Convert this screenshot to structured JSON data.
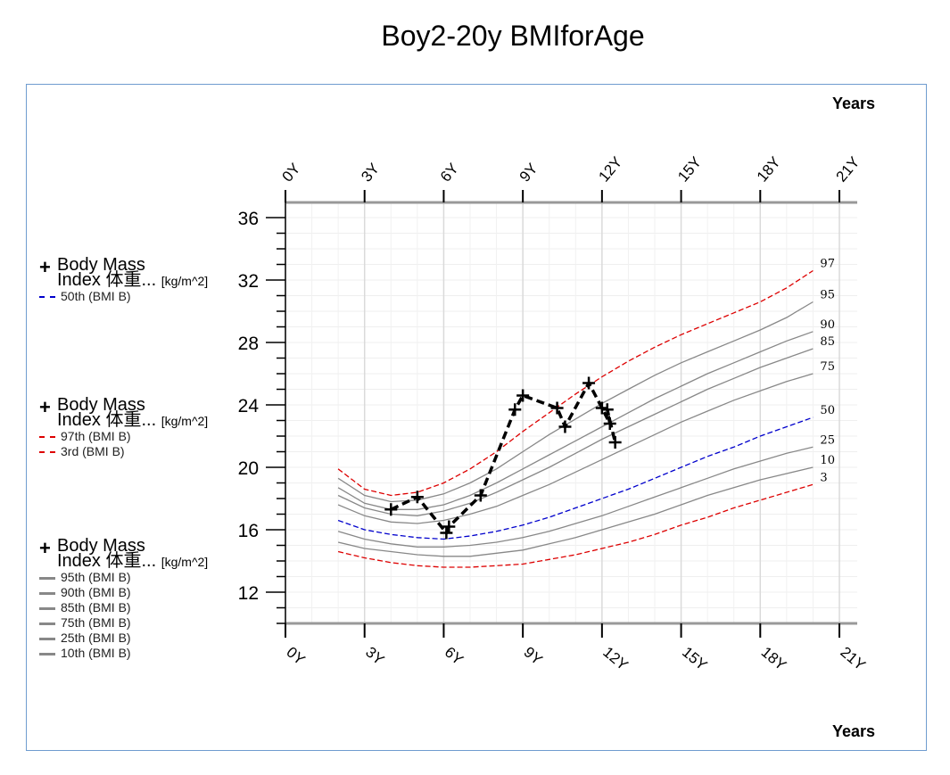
{
  "title": "Boy2-20y BMIforAge",
  "chart_data": {
    "type": "line",
    "title": "Boy2-20y BMIforAge",
    "xlabel": "Years",
    "ylabel": "",
    "xlim": [
      0,
      21
    ],
    "ylim": [
      10,
      37
    ],
    "x_ticks": [
      "0Y",
      "3Y",
      "6Y",
      "9Y",
      "12Y",
      "15Y",
      "18Y",
      "21Y"
    ],
    "y_ticks": [
      "12",
      "16",
      "20",
      "24",
      "28",
      "32",
      "36"
    ],
    "grid": true,
    "x_axis_label_top": "Years",
    "x_axis_label_bottom": "Years",
    "curve_x": [
      2,
      3,
      4,
      5,
      6,
      7,
      8,
      9,
      10,
      11,
      12,
      13,
      14,
      15,
      16,
      17,
      18,
      19,
      20
    ],
    "percentile_curves": [
      {
        "label": "97",
        "color": "#dd0000",
        "style": "dashed",
        "values": [
          19.9,
          18.6,
          18.2,
          18.4,
          19.0,
          19.9,
          21.0,
          22.3,
          23.5,
          24.7,
          25.8,
          26.8,
          27.7,
          28.5,
          29.2,
          29.9,
          30.6,
          31.5,
          32.6
        ]
      },
      {
        "label": "95",
        "color": "#888888",
        "style": "solid",
        "values": [
          19.3,
          18.2,
          17.8,
          17.9,
          18.3,
          19.0,
          19.9,
          21.0,
          22.1,
          23.1,
          24.1,
          25.0,
          25.9,
          26.7,
          27.4,
          28.1,
          28.8,
          29.6,
          30.6
        ]
      },
      {
        "label": "90",
        "color": "#888888",
        "style": "solid",
        "values": [
          18.7,
          17.7,
          17.3,
          17.3,
          17.6,
          18.2,
          19.0,
          19.9,
          20.8,
          21.7,
          22.6,
          23.5,
          24.4,
          25.2,
          26.0,
          26.7,
          27.4,
          28.1,
          28.7
        ]
      },
      {
        "label": "85",
        "color": "#888888",
        "style": "solid",
        "values": [
          18.2,
          17.4,
          17.0,
          16.9,
          17.2,
          17.7,
          18.4,
          19.2,
          20.0,
          20.9,
          21.8,
          22.6,
          23.4,
          24.2,
          25.0,
          25.7,
          26.4,
          27.0,
          27.6
        ]
      },
      {
        "label": "75",
        "color": "#888888",
        "style": "solid",
        "values": [
          17.6,
          16.9,
          16.5,
          16.4,
          16.6,
          17.0,
          17.5,
          18.2,
          18.9,
          19.7,
          20.5,
          21.3,
          22.1,
          22.9,
          23.6,
          24.3,
          24.9,
          25.5,
          26.0
        ]
      },
      {
        "label": "50",
        "color": "#0000cc",
        "style": "dashed",
        "values": [
          16.6,
          16.0,
          15.7,
          15.5,
          15.4,
          15.6,
          15.9,
          16.3,
          16.8,
          17.4,
          18.0,
          18.6,
          19.3,
          20.0,
          20.7,
          21.3,
          22.0,
          22.6,
          23.2
        ]
      },
      {
        "label": "25",
        "color": "#888888",
        "style": "solid",
        "values": [
          15.9,
          15.4,
          15.1,
          14.9,
          14.9,
          15.0,
          15.2,
          15.5,
          15.9,
          16.4,
          16.9,
          17.5,
          18.1,
          18.7,
          19.3,
          19.9,
          20.4,
          20.9,
          21.3
        ]
      },
      {
        "label": "10",
        "color": "#888888",
        "style": "solid",
        "values": [
          15.2,
          14.8,
          14.6,
          14.4,
          14.3,
          14.3,
          14.5,
          14.7,
          15.1,
          15.5,
          16.0,
          16.5,
          17.0,
          17.6,
          18.2,
          18.7,
          19.2,
          19.6,
          20.0
        ]
      },
      {
        "label": "3",
        "color": "#dd0000",
        "style": "dashed",
        "values": [
          14.6,
          14.2,
          13.9,
          13.7,
          13.6,
          13.6,
          13.7,
          13.8,
          14.1,
          14.4,
          14.8,
          15.2,
          15.7,
          16.3,
          16.8,
          17.4,
          17.9,
          18.4,
          18.9
        ]
      }
    ],
    "measurement_series": {
      "name": "Body Mass Index 体重... [kg/m^2]",
      "color": "#000000",
      "style": "dashed",
      "x": [
        4.0,
        5.0,
        6.1,
        6.2,
        7.4,
        8.7,
        9.0,
        10.3,
        10.6,
        11.5,
        12.0,
        12.3,
        12.2,
        12.5
      ],
      "y": [
        17.3,
        18.1,
        15.8,
        16.2,
        18.2,
        23.7,
        24.6,
        23.8,
        22.6,
        25.4,
        23.8,
        22.8,
        23.7,
        21.6
      ]
    }
  },
  "legend_groups": [
    {
      "name": "Body Mass",
      "name2": "Index 体重...",
      "unit": "[kg/m^2]",
      "items": [
        {
          "label": "50th (BMI B)",
          "color": "#0000cc",
          "swatch": "blue"
        }
      ]
    },
    {
      "name": "Body Mass",
      "name2": "Index 体重...",
      "unit": "[kg/m^2]",
      "items": [
        {
          "label": "97th (BMI B)",
          "color": "#dd0000",
          "swatch": "red"
        },
        {
          "label": "3rd (BMI B)",
          "color": "#dd0000",
          "swatch": "red"
        }
      ]
    },
    {
      "name": "Body Mass",
      "name2": "Index 体重...",
      "unit": "[kg/m^2]",
      "items": [
        {
          "label": "95th (BMI B)",
          "color": "#888888",
          "swatch": "gray"
        },
        {
          "label": "90th (BMI B)",
          "color": "#888888",
          "swatch": "gray"
        },
        {
          "label": "85th (BMI B)",
          "color": "#888888",
          "swatch": "gray"
        },
        {
          "label": "75th (BMI B)",
          "color": "#888888",
          "swatch": "gray"
        },
        {
          "label": "25th (BMI B)",
          "color": "#888888",
          "swatch": "gray"
        },
        {
          "label": "10th (BMI B)",
          "color": "#888888",
          "swatch": "gray"
        }
      ]
    }
  ]
}
